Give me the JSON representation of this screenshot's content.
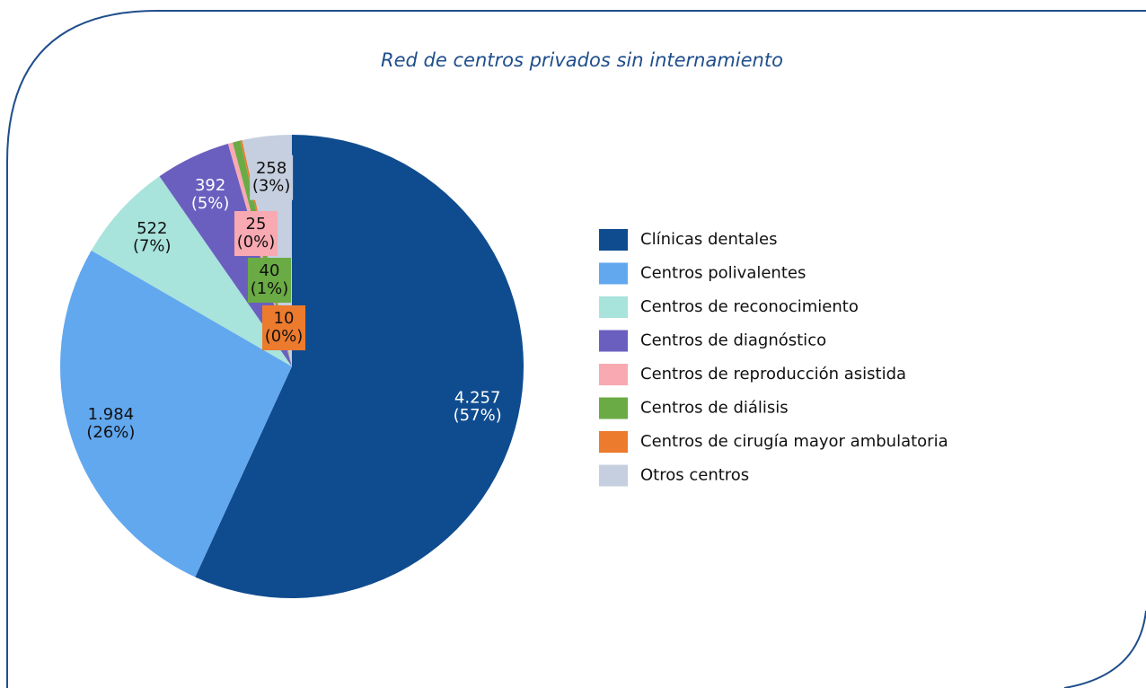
{
  "chart_data": {
    "type": "pie",
    "title": "Red de centros privados sin internamiento",
    "categories": [
      "Clínicas dentales",
      "Centros polivalentes",
      "Centros de reconocimiento",
      "Centros de diagnóstico",
      "Centros de reproducción asistida",
      "Centros de diálisis",
      "Centros de cirugía mayor ambulatoria",
      "Otros centros"
    ],
    "values": [
      4257,
      1984,
      522,
      392,
      25,
      40,
      10,
      258
    ],
    "value_labels": [
      "4.257",
      "1.984",
      "522",
      "392",
      "25",
      "40",
      "10",
      "258"
    ],
    "percentages": [
      57,
      26,
      7,
      5,
      0,
      1,
      0,
      3
    ],
    "percentage_labels": [
      "(57%)",
      "(26%)",
      "(7%)",
      "(5%)",
      "(0%)",
      "(1%)",
      "(0%)",
      "(3%)"
    ],
    "colors": [
      "#0f4c8f",
      "#62a8ef",
      "#a8e3dc",
      "#6a5fbf",
      "#f8a9b2",
      "#6aab45",
      "#ec7b2e",
      "#c5cfdf"
    ],
    "legend": "right"
  }
}
